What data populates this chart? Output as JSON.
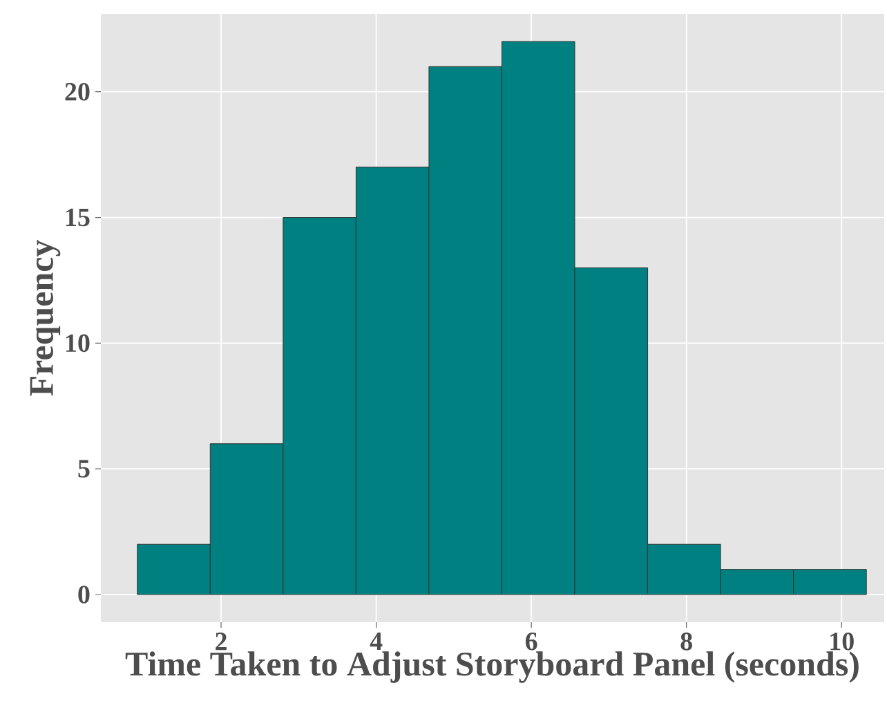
{
  "chart_data": {
    "type": "histogram",
    "xlabel": "Time Taken to Adjust Storyboard Panel (seconds)",
    "ylabel": "Frequency",
    "bins": [
      0.92,
      1.86,
      2.8,
      3.74,
      4.68,
      5.62,
      6.56,
      7.5,
      8.44,
      9.38,
      10.32
    ],
    "values": [
      2,
      6,
      15,
      17,
      21,
      22,
      13,
      2,
      1,
      1
    ],
    "color": "#008080",
    "xlim": [
      0.45,
      10.55
    ],
    "ylim": [
      -1.1,
      23.1
    ],
    "xticks": [
      2,
      4,
      6,
      8,
      10
    ],
    "yticks": [
      0,
      5,
      10,
      15,
      20
    ],
    "grid": true
  }
}
